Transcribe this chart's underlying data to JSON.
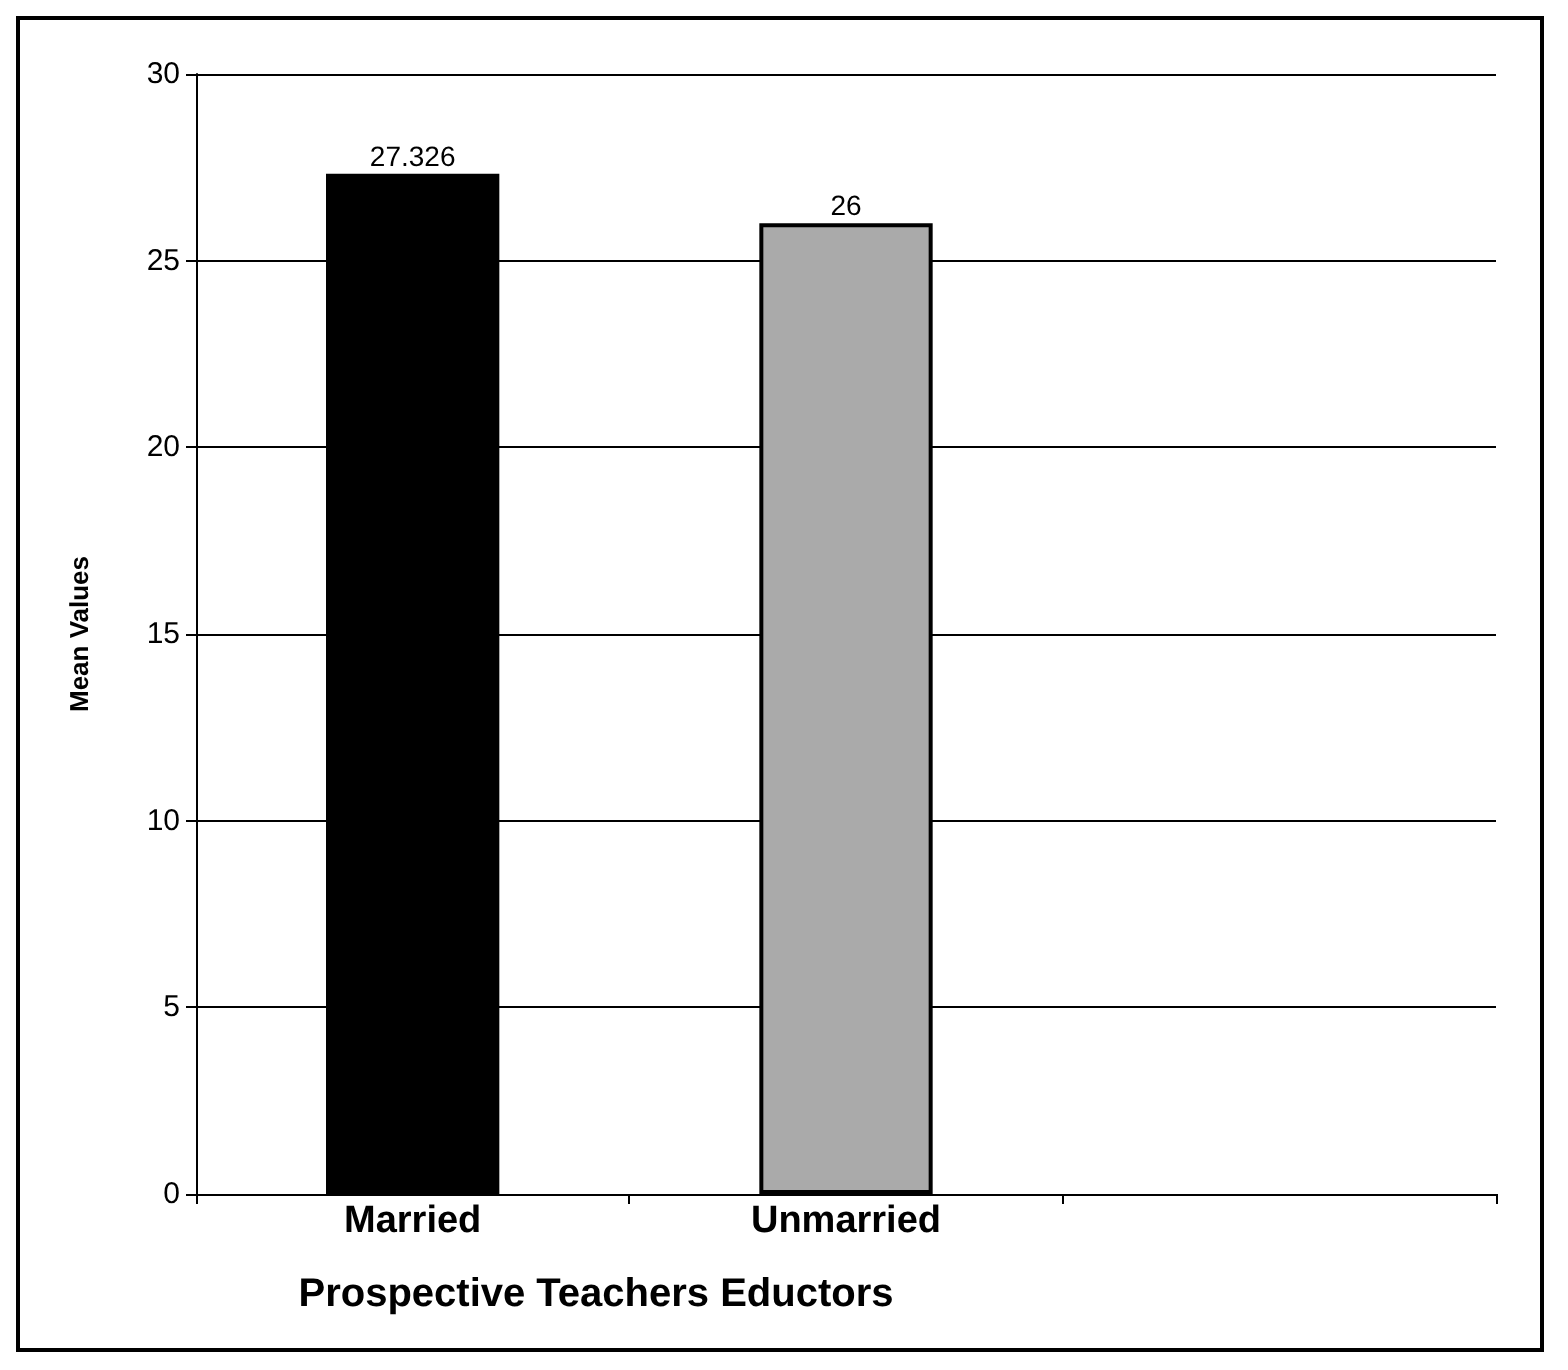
{
  "chart_data": {
    "type": "bar",
    "xlabel": "Prospective Teachers Eductors",
    "ylabel": "Mean Values",
    "categories": [
      "Married",
      "Unmarried",
      null
    ],
    "values": [
      27.326,
      26,
      null
    ],
    "colors": [
      "#000000",
      "#aaaaaa",
      "#aaaaaa"
    ],
    "ylim": [
      0,
      30
    ],
    "yticks": [
      0,
      5,
      10,
      15,
      20,
      25,
      30
    ],
    "grid": "y",
    "data_labels": true
  }
}
